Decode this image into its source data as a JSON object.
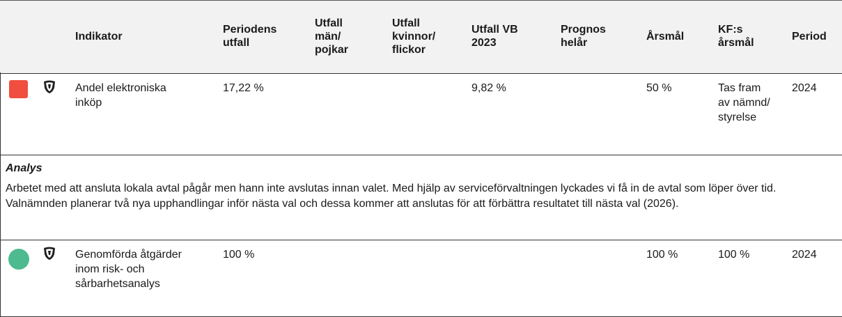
{
  "table": {
    "headers": [
      "Indikator",
      "Periodens utfall",
      "Utfall män/ pojkar",
      "Utfall kvinnor/ flickor",
      "Utfall VB 2023",
      "Prognos helår",
      "Årsmål",
      "KF:s årsmål",
      "Period"
    ],
    "rows": [
      {
        "status_color": "#f04e3e",
        "status_shape": "square",
        "cells": [
          "Andel elektroniska inköp",
          "17,22 %",
          "",
          "",
          "9,82 %",
          "",
          "50 %",
          "Tas fram av nämnd/ styrelse",
          "2024"
        ],
        "analysis": {
          "title": "Analys",
          "text": "Arbetet med att ansluta lokala avtal pågår men hann inte avslutas innan valet. Med hjälp av serviceförvaltningen lyckades vi få in de avtal som löper över tid. Valnämnden planerar två nya upphandlingar inför nästa val och dessa kommer att anslutas för att förbättra resultatet till nästa val (2026)."
        }
      },
      {
        "status_color": "#4dbb8f",
        "status_shape": "circle",
        "cells": [
          "Genomförda åtgärder inom risk- och sårbarhetsanalys",
          "100 %",
          "",
          "",
          "",
          "",
          "100 %",
          "100 %",
          "2024"
        ]
      }
    ]
  }
}
